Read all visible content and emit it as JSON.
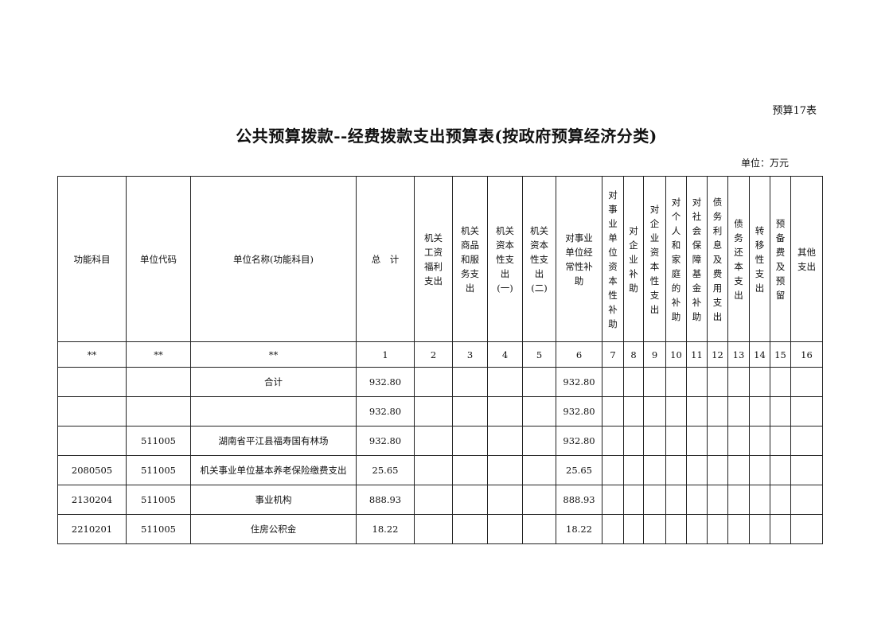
{
  "table_tag": "预算17表",
  "title": "公共预算拨款--经费拨款支出预算表(按政府预算经济分类)",
  "unit": "单位：万元",
  "headers": [
    "功能科目",
    "单位代码",
    "单位名称(功能科目)",
    "总　计",
    "机关\n工资\n福利\n支出",
    "机关\n商品\n和服\n务支\n出",
    "机关\n资本\n性支\n出\n(一)",
    "机关\n资本\n性支\n出\n(二)",
    "对事业\n单位经\n常性补\n助",
    "对\n事\n业\n单\n位\n资\n本\n性\n补\n助",
    "对\n企\n业\n补\n助",
    "对\n企\n业\n资\n本\n性\n支\n出",
    "对\n个\n人\n和\n家\n庭\n的\n补\n助",
    "对\n社\n会\n保\n障\n基\n金\n补\n助",
    "债\n务\n利\n息\n及\n费\n用\n支\n出",
    "债\n务\n还\n本\n支\n出",
    "转\n移\n性\n支\n出",
    "预\n备\n费\n及\n预\n留",
    "其他\n支出"
  ],
  "numbers": [
    "**",
    "**",
    "**",
    "1",
    "2",
    "3",
    "4",
    "5",
    "6",
    "7",
    "8",
    "9",
    "10",
    "11",
    "12",
    "13",
    "14",
    "15",
    "16"
  ],
  "rows": [
    [
      "",
      "",
      "合计",
      "932.80",
      "",
      "",
      "",
      "",
      "932.80",
      "",
      "",
      "",
      "",
      "",
      "",
      "",
      "",
      "",
      ""
    ],
    [
      "",
      "",
      "",
      "932.80",
      "",
      "",
      "",
      "",
      "932.80",
      "",
      "",
      "",
      "",
      "",
      "",
      "",
      "",
      "",
      ""
    ],
    [
      "",
      "511005",
      "湖南省平江县福寿国有林场",
      "932.80",
      "",
      "",
      "",
      "",
      "932.80",
      "",
      "",
      "",
      "",
      "",
      "",
      "",
      "",
      "",
      ""
    ],
    [
      "2080505",
      "511005",
      "机关事业单位基本养老保险缴费支出",
      "25.65",
      "",
      "",
      "",
      "",
      "25.65",
      "",
      "",
      "",
      "",
      "",
      "",
      "",
      "",
      "",
      ""
    ],
    [
      "2130204",
      "511005",
      "事业机构",
      "888.93",
      "",
      "",
      "",
      "",
      "888.93",
      "",
      "",
      "",
      "",
      "",
      "",
      "",
      "",
      "",
      ""
    ],
    [
      "2210201",
      "511005",
      "住房公积金",
      "18.22",
      "",
      "",
      "",
      "",
      "18.22",
      "",
      "",
      "",
      "",
      "",
      "",
      "",
      "",
      "",
      ""
    ]
  ]
}
